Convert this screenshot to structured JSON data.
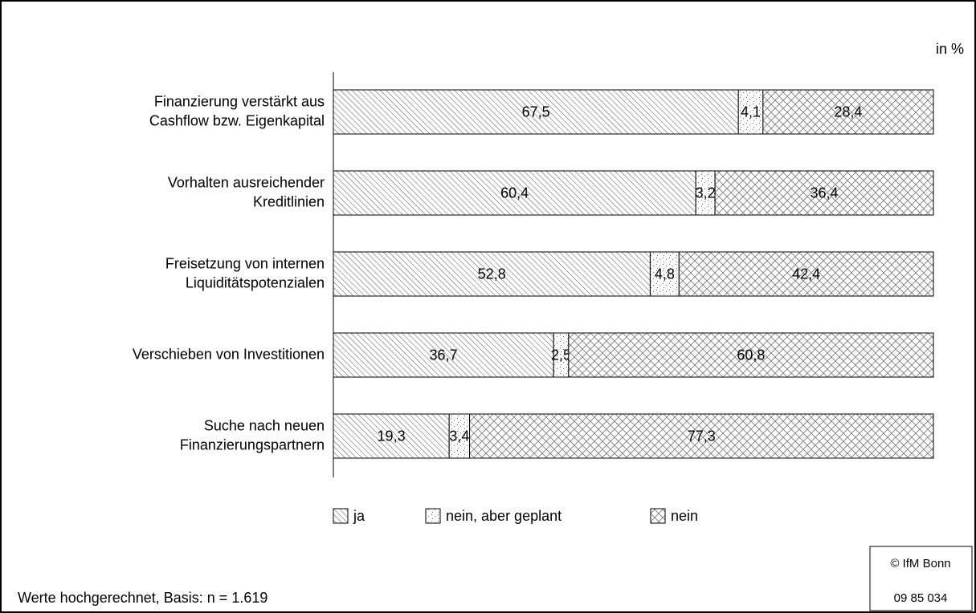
{
  "chart_data": {
    "type": "stacked-barh",
    "unit_label": "in %",
    "categories": [
      [
        "Finanzierung verstärkt aus",
        "Cashflow bzw. Eigenkapital"
      ],
      [
        "Vorhalten ausreichender",
        "Kreditlinien"
      ],
      [
        "Freisetzung von internen",
        "Liquiditätspotenzialen"
      ],
      [
        "Verschieben von Investitionen"
      ],
      [
        "Suche nach neuen",
        "Finanzierungspartnern"
      ]
    ],
    "series": [
      {
        "name": "ja",
        "color": "#000000",
        "pattern": "hatch",
        "values": [
          67.5,
          60.4,
          52.8,
          36.7,
          19.3
        ],
        "value_labels": [
          "67,5",
          "60,4",
          "52,8",
          "36,7",
          "19,3"
        ]
      },
      {
        "name": "nein, aber geplant",
        "color": "#000000",
        "pattern": "dots",
        "values": [
          4.1,
          3.2,
          4.8,
          2.5,
          3.4
        ],
        "value_labels": [
          "4,1",
          "3,2",
          "4,8",
          "2,5",
          "3,4"
        ]
      },
      {
        "name": "nein",
        "color": "#000000",
        "pattern": "cross",
        "values": [
          28.4,
          36.4,
          42.4,
          60.8,
          77.3
        ],
        "value_labels": [
          "28,4",
          "36,4",
          "42,4",
          "60,8",
          "77,3"
        ]
      }
    ],
    "xlim": [
      0,
      100
    ],
    "legend": "bottom",
    "note": "Werte hochgerechnet, Basis: n = 1.619",
    "source": [
      "© IfM Bonn",
      "09 85 034"
    ]
  }
}
